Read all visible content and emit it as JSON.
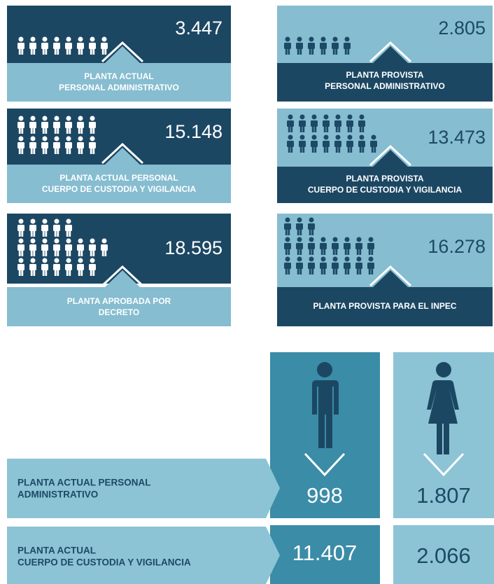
{
  "cards": [
    {
      "value": "3.447",
      "label": [
        "PLANTA ACTUAL",
        "PERSONAL ADMINISTRATIVO"
      ]
    },
    {
      "value": "2.805",
      "label": [
        "PLANTA PROVISTA",
        "PERSONAL ADMINISTRATIVO"
      ]
    },
    {
      "value": "15.148",
      "label": [
        "PLANTA ACTUAL PERSONAL",
        "CUERPO DE CUSTODIA Y VIGILANCIA"
      ]
    },
    {
      "value": "13.473",
      "label": [
        "PLANTA PROVISTA",
        "CUERPO DE CUSTODIA Y VIGILANCIA"
      ]
    },
    {
      "value": "18.595",
      "label": [
        "PLANTA APROBADA POR",
        "DECRETO"
      ]
    },
    {
      "value": "16.278",
      "label": [
        "PLANTA PROVISTA PARA EL INPEC"
      ]
    }
  ],
  "comparison": {
    "rows": [
      {
        "label": [
          "PLANTA ACTUAL PERSONAL",
          "ADMINISTRATIVO"
        ],
        "men": "998",
        "women": "1.807"
      },
      {
        "label": [
          "PLANTA ACTUAL",
          "CUERPO DE CUSTODIA Y VIGILANCIA"
        ],
        "men": "11.407",
        "women": "2.066"
      }
    ]
  }
}
